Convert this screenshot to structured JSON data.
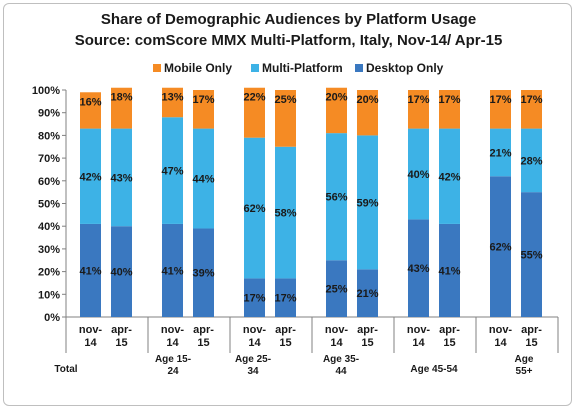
{
  "chart_data": {
    "type": "bar",
    "stacked": true,
    "title": "Share of Demographic Audiences by Platform Usage",
    "subtitle": "Source: comScore MMX Multi-Platform, Italy, Nov-14/ Apr-15",
    "legend_position": "top",
    "ylim": [
      0,
      100
    ],
    "y_ticks": [
      "0%",
      "10%",
      "20%",
      "30%",
      "40%",
      "50%",
      "60%",
      "70%",
      "80%",
      "90%",
      "100%"
    ],
    "groups": [
      "Total",
      "Age 15-\n24",
      "Age 25-\n34",
      "Age 35-\n44",
      "Age 45-54",
      "Age\n55+"
    ],
    "categories": [
      "nov-\n14",
      "apr-\n15",
      "nov-\n14",
      "apr-\n15",
      "nov-\n14",
      "apr-\n15",
      "nov-\n14",
      "apr-\n15",
      "nov-\n14",
      "apr-\n15",
      "nov-\n14",
      "apr-\n15"
    ],
    "series": [
      {
        "name": "Desktop Only",
        "color": "#3a78c0",
        "values": [
          41,
          40,
          41,
          39,
          17,
          17,
          25,
          21,
          43,
          41,
          62,
          55
        ],
        "labels": [
          "41%",
          "40%",
          "41%",
          "39%",
          "17%",
          "17%",
          "25%",
          "21%",
          "43%",
          "41%",
          "62%",
          "55%"
        ]
      },
      {
        "name": "Multi-Platform",
        "color": "#3db2e6",
        "values": [
          42,
          43,
          47,
          44,
          62,
          58,
          56,
          59,
          40,
          42,
          21,
          28
        ],
        "labels": [
          "42%",
          "43%",
          "47%",
          "44%",
          "62%",
          "58%",
          "56%",
          "59%",
          "40%",
          "42%",
          "21%",
          "28%"
        ]
      },
      {
        "name": "Mobile Only",
        "color": "#f58b24",
        "values": [
          16,
          18,
          13,
          17,
          22,
          25,
          20,
          20,
          17,
          17,
          17,
          17
        ],
        "labels": [
          "16%",
          "18%",
          "13%",
          "17%",
          "22%",
          "25%",
          "20%",
          "20%",
          "17%",
          "17%",
          "17%",
          "17%"
        ]
      }
    ],
    "legend_order": [
      "Mobile Only",
      "Multi-Platform",
      "Desktop Only"
    ],
    "grid": false
  }
}
